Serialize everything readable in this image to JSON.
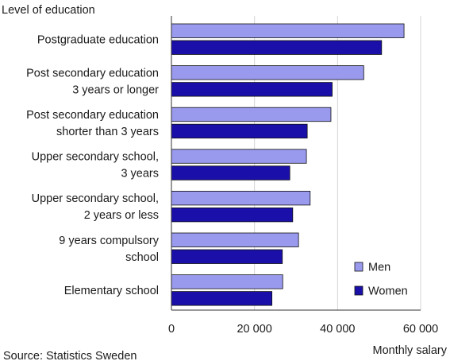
{
  "chart_data": {
    "type": "bar",
    "orientation": "horizontal",
    "title": "",
    "ylabel": "Level of education",
    "xlabel": "Monthly salary",
    "source": "Source: Statistics Sweden",
    "categories": [
      [
        "Postgraduate education"
      ],
      [
        "Post secondary education",
        "3 years or longer"
      ],
      [
        "Post secondary education",
        "shorter than 3 years"
      ],
      [
        "Upper secondary school,",
        "3 years"
      ],
      [
        "Upper secondary school,",
        "2 years or less"
      ],
      [
        "9 years compulsory",
        "school"
      ],
      [
        "Elementary school"
      ]
    ],
    "series": [
      {
        "name": "Men",
        "color": "#9999ee",
        "values": [
          56000,
          46300,
          38400,
          32500,
          33400,
          30600,
          26800
        ]
      },
      {
        "name": "Women",
        "color": "#1a0fa8",
        "values": [
          50600,
          38700,
          32700,
          28500,
          29200,
          26700,
          24200
        ]
      }
    ],
    "xlim": [
      0,
      60000
    ],
    "xticks": [
      0,
      20000,
      40000,
      60000
    ],
    "xtick_labels": [
      "0",
      "20 000",
      "40 000",
      "60 000"
    ],
    "grid": "vertical",
    "legend": "bottom-right"
  }
}
